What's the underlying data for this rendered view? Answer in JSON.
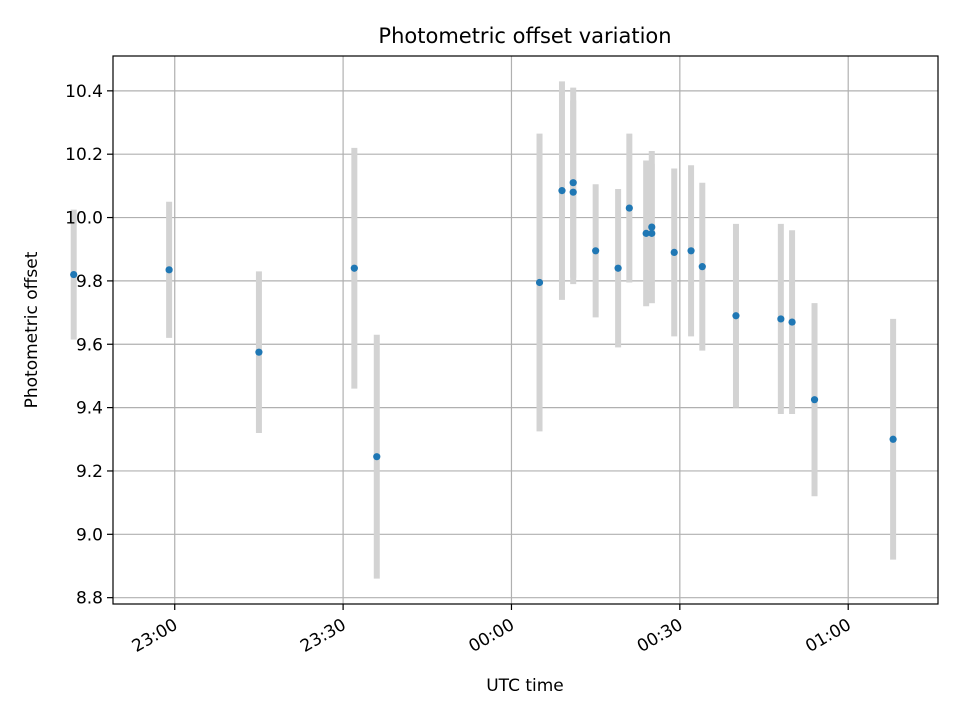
{
  "chart_data": {
    "type": "scatter",
    "title": "Photometric offset variation",
    "xlabel": "UTC time",
    "ylabel": "Photometric offset",
    "x_is_time": true,
    "xlim": [
      "22:49",
      "01:16"
    ],
    "ylim": [
      8.78,
      10.51
    ],
    "xticks": [
      "23:00",
      "23:30",
      "00:00",
      "00:30",
      "01:00"
    ],
    "yticks": [
      "8.8",
      "9.0",
      "9.2",
      "9.4",
      "9.6",
      "9.8",
      "10.0",
      "10.2",
      "10.4"
    ],
    "grid": true,
    "marker_color": "#1f77b4",
    "errorbar_color": "#d3d3d3",
    "series": [
      {
        "points": [
          {
            "x": "22:42",
            "y": 9.82,
            "err": 0.205
          },
          {
            "x": "22:59",
            "y": 9.835,
            "err": 0.215
          },
          {
            "x": "23:15",
            "y": 9.575,
            "err": 0.255
          },
          {
            "x": "23:32",
            "y": 9.84,
            "err": 0.38
          },
          {
            "x": "23:36",
            "y": 9.245,
            "err": 0.385
          },
          {
            "x": "00:05",
            "y": 9.795,
            "err": 0.47
          },
          {
            "x": "00:09",
            "y": 10.085,
            "err": 0.345
          },
          {
            "x": "00:11",
            "y": 10.11,
            "err": 0.3
          },
          {
            "x": "00:11",
            "y": 10.08,
            "err": 0.29
          },
          {
            "x": "00:15",
            "y": 9.895,
            "err": 0.21
          },
          {
            "x": "00:19",
            "y": 9.84,
            "err": 0.25
          },
          {
            "x": "00:21",
            "y": 10.03,
            "err": 0.235
          },
          {
            "x": "00:24",
            "y": 9.95,
            "err": 0.23
          },
          {
            "x": "00:25",
            "y": 9.97,
            "err": 0.24
          },
          {
            "x": "00:25",
            "y": 9.95,
            "err": 0.22
          },
          {
            "x": "00:29",
            "y": 9.89,
            "err": 0.265
          },
          {
            "x": "00:32",
            "y": 9.895,
            "err": 0.27
          },
          {
            "x": "00:34",
            "y": 9.845,
            "err": 0.265
          },
          {
            "x": "00:40",
            "y": 9.69,
            "err": 0.29
          },
          {
            "x": "00:48",
            "y": 9.68,
            "err": 0.3
          },
          {
            "x": "00:50",
            "y": 9.67,
            "err": 0.29
          },
          {
            "x": "00:54",
            "y": 9.425,
            "err": 0.305
          },
          {
            "x": "01:08",
            "y": 9.3,
            "err": 0.38
          }
        ]
      }
    ]
  }
}
